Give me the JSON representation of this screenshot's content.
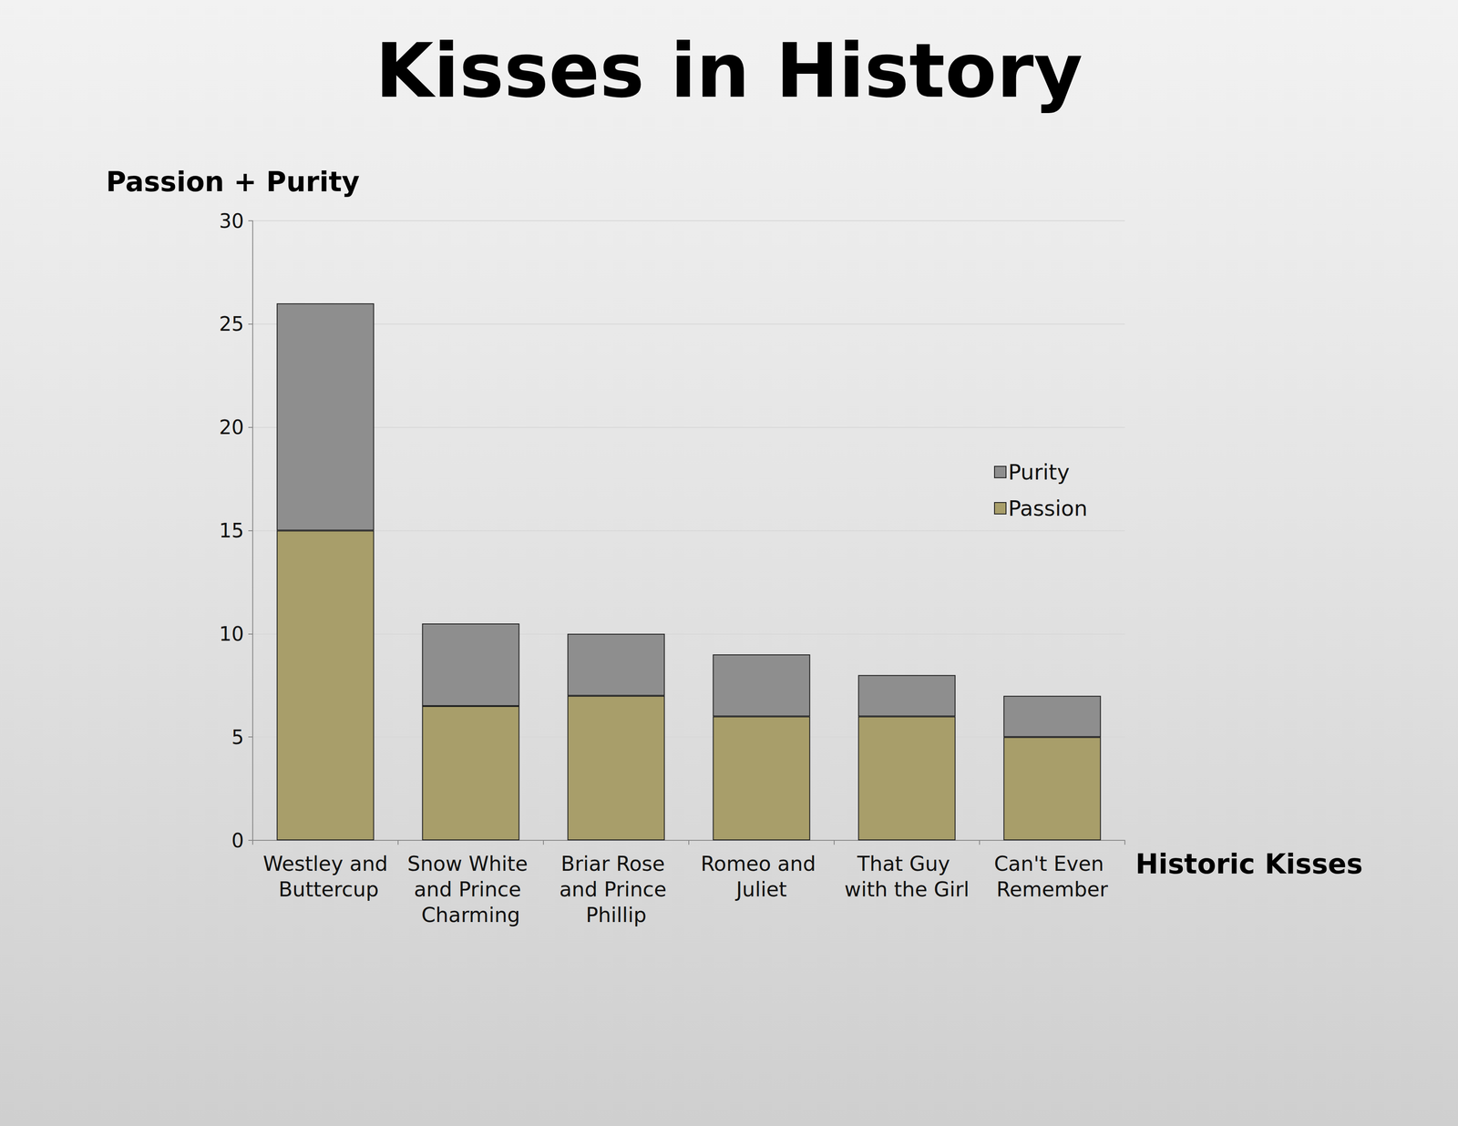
{
  "chart_data": {
    "type": "bar",
    "title": "Kisses in History",
    "y_label": "Passion + Purity",
    "x_label": "Historic Kisses",
    "categories": [
      "Westley and Buttercup",
      "Snow White and Prince Charming",
      "Briar Rose and Prince Phillip",
      "Romeo and Juliet",
      "That Guy with the Girl",
      "Can't Even Remember"
    ],
    "series": [
      {
        "name": "Passion",
        "color": "#a89e6a",
        "values": [
          15,
          6.5,
          7,
          6,
          6,
          5
        ]
      },
      {
        "name": "Purity",
        "color": "#8e8e8e",
        "values": [
          11,
          4,
          3,
          3,
          2,
          2
        ]
      }
    ],
    "stacked": true,
    "ylim": [
      0,
      30
    ],
    "yticks": [
      0,
      5,
      10,
      15,
      20,
      25,
      30
    ],
    "grid": true,
    "legend": "right"
  }
}
